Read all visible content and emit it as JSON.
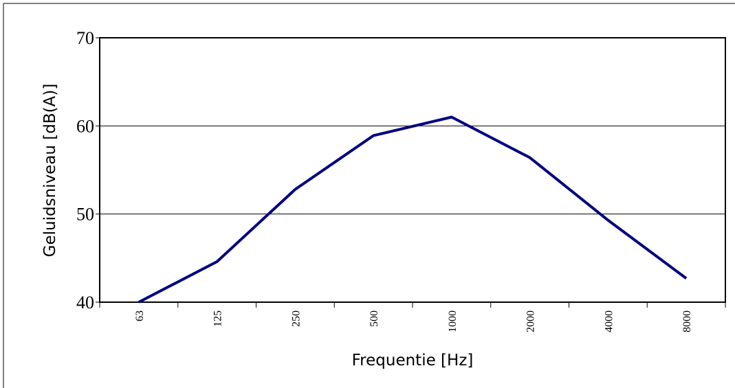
{
  "chart_data": {
    "type": "line",
    "x_label": "Frequentie [Hz]",
    "y_label": "Geluidsniveau [dB(A)]",
    "categories": [
      "63",
      "125",
      "250",
      "500",
      "1000",
      "2000",
      "4000",
      "8000"
    ],
    "series": [
      {
        "color": "#000080",
        "values": [
          40,
          44.6,
          52.8,
          58.9,
          61.0,
          56.4,
          49.3,
          42.7
        ]
      }
    ],
    "ylim": [
      40,
      70
    ],
    "yticks": [
      40,
      50,
      60,
      70
    ],
    "grid": true
  }
}
